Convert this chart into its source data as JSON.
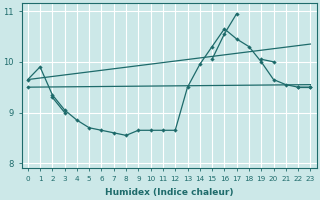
{
  "xlabel": "Humidex (Indice chaleur)",
  "bg_color": "#cce8e8",
  "line_color": "#1e6b6b",
  "grid_color": "#ffffff",
  "ylim": [
    7.9,
    11.15
  ],
  "xlim": [
    -0.5,
    23.5
  ],
  "yticks": [
    8,
    9,
    10,
    11
  ],
  "xticks": [
    0,
    1,
    2,
    3,
    4,
    5,
    6,
    7,
    8,
    9,
    10,
    11,
    12,
    13,
    14,
    15,
    16,
    17,
    18,
    19,
    20,
    21,
    22,
    23
  ],
  "series1_x": [
    0,
    1,
    2,
    3,
    4,
    5,
    6,
    7,
    8,
    9,
    10,
    11,
    12,
    13,
    14,
    15,
    16,
    17,
    18,
    19,
    20,
    21,
    22,
    23
  ],
  "series1_y": [
    9.65,
    9.9,
    9.35,
    9.05,
    8.85,
    8.7,
    8.65,
    8.6,
    8.55,
    8.65,
    8.65,
    8.65,
    8.65,
    9.5,
    9.95,
    10.3,
    10.65,
    10.45,
    10.3,
    10.0,
    9.65,
    9.55,
    9.5,
    9.5
  ],
  "series2_x": [
    0,
    1,
    2,
    3,
    4,
    5,
    6,
    7,
    8,
    9,
    10,
    11,
    12,
    13,
    14,
    15,
    16,
    17,
    18,
    19,
    20,
    21,
    22,
    23
  ],
  "series2_y": [
    9.5,
    null,
    9.3,
    9.0,
    null,
    null,
    null,
    null,
    null,
    null,
    null,
    null,
    null,
    null,
    null,
    10.05,
    10.55,
    10.95,
    null,
    10.05,
    10.0,
    null,
    9.5,
    9.5
  ],
  "line1_x": [
    0,
    23
  ],
  "line1_y": [
    9.5,
    9.55
  ],
  "line2_x": [
    0,
    23
  ],
  "line2_y": [
    9.65,
    10.35
  ]
}
